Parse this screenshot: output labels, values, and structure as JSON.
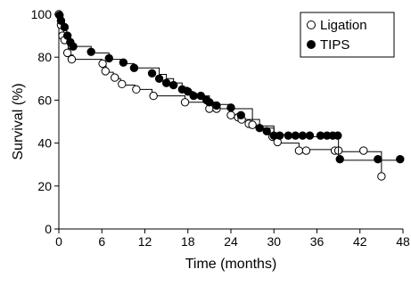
{
  "chart_data": {
    "type": "line",
    "subtype": "kaplan-meier-step",
    "title": "",
    "xlabel": "Time (months)",
    "ylabel": "Survival (%)",
    "xlim": [
      0,
      48
    ],
    "ylim": [
      0,
      100
    ],
    "xticks": [
      0,
      6,
      12,
      18,
      24,
      30,
      36,
      42,
      48
    ],
    "yticks": [
      0,
      20,
      40,
      60,
      80,
      100
    ],
    "grid": false,
    "legend_position": "top-right",
    "series": [
      {
        "name": "Ligation",
        "marker": "open-circle",
        "color": "#000000",
        "steps": [
          [
            0,
            100
          ],
          [
            0.2,
            96
          ],
          [
            0.4,
            93
          ],
          [
            0.7,
            90
          ],
          [
            1,
            87
          ],
          [
            1.3,
            84
          ],
          [
            1.6,
            81
          ],
          [
            2,
            79
          ],
          [
            6,
            76
          ],
          [
            6.6,
            73
          ],
          [
            7.6,
            70
          ],
          [
            8.6,
            67
          ],
          [
            10.6,
            65
          ],
          [
            13,
            62
          ],
          [
            17.6,
            59
          ],
          [
            21,
            56
          ],
          [
            24,
            53
          ],
          [
            25,
            51
          ],
          [
            27,
            48
          ],
          [
            30,
            43
          ],
          [
            30.5,
            40
          ],
          [
            33.5,
            37
          ],
          [
            38,
            36
          ],
          [
            45,
            24
          ]
        ],
        "censored": [
          [
            0,
            100
          ],
          [
            0.3,
            95
          ],
          [
            0.5,
            90
          ],
          [
            0.8,
            88
          ],
          [
            1.2,
            82
          ],
          [
            1.8,
            79
          ],
          [
            6.1,
            77
          ],
          [
            6.5,
            73.5
          ],
          [
            7.8,
            70.5
          ],
          [
            8.8,
            67.5
          ],
          [
            10.8,
            65
          ],
          [
            13.2,
            62
          ],
          [
            17.6,
            59
          ],
          [
            21,
            56
          ],
          [
            22,
            56
          ],
          [
            24,
            53
          ],
          [
            25,
            52
          ],
          [
            25.5,
            51
          ],
          [
            26.5,
            49
          ],
          [
            27,
            48.5
          ],
          [
            29.8,
            43
          ],
          [
            30.5,
            40.5
          ],
          [
            33.5,
            36.5
          ],
          [
            34.5,
            36.5
          ],
          [
            38.5,
            36.5
          ],
          [
            39,
            36.5
          ],
          [
            42.5,
            36.5
          ],
          [
            45,
            24.5
          ]
        ]
      },
      {
        "name": "TIPS",
        "marker": "filled-circle",
        "color": "#000000",
        "steps": [
          [
            0,
            100
          ],
          [
            0.4,
            97
          ],
          [
            0.8,
            94
          ],
          [
            1.1,
            91
          ],
          [
            1.4,
            88
          ],
          [
            1.7,
            85
          ],
          [
            4.5,
            82
          ],
          [
            7,
            79
          ],
          [
            9,
            77
          ],
          [
            10.5,
            75
          ],
          [
            14,
            72
          ],
          [
            15,
            70
          ],
          [
            16,
            68
          ],
          [
            17.2,
            66
          ],
          [
            18,
            64
          ],
          [
            18.8,
            62
          ],
          [
            21,
            59
          ],
          [
            22,
            58
          ],
          [
            24,
            56
          ],
          [
            27,
            51
          ],
          [
            28,
            47
          ],
          [
            30,
            44
          ],
          [
            32,
            43
          ],
          [
            39,
            32
          ],
          [
            44.5,
            32
          ]
        ],
        "censored": [
          [
            0.1,
            99.5
          ],
          [
            0.3,
            97
          ],
          [
            0.8,
            94
          ],
          [
            1.2,
            90
          ],
          [
            1.6,
            87
          ],
          [
            2,
            85
          ],
          [
            4.5,
            82.5
          ],
          [
            7,
            79.5
          ],
          [
            9,
            77.5
          ],
          [
            10.5,
            75
          ],
          [
            13,
            72.5
          ],
          [
            14,
            70
          ],
          [
            15,
            68
          ],
          [
            16,
            67
          ],
          [
            17.2,
            65
          ],
          [
            18,
            64
          ],
          [
            18.8,
            62
          ],
          [
            19.8,
            62
          ],
          [
            20.6,
            60
          ],
          [
            21,
            59
          ],
          [
            22,
            57.5
          ],
          [
            24,
            56.5
          ],
          [
            25.4,
            53
          ],
          [
            28,
            47
          ],
          [
            29,
            45.5
          ],
          [
            30,
            43.5
          ],
          [
            30.8,
            43.5
          ],
          [
            32,
            43.5
          ],
          [
            33,
            43.5
          ],
          [
            34,
            43.5
          ],
          [
            35,
            43.5
          ],
          [
            36.5,
            43.5
          ],
          [
            37.4,
            43.5
          ],
          [
            38.2,
            43.5
          ],
          [
            38.9,
            43.5
          ],
          [
            39.2,
            32.5
          ],
          [
            44.5,
            32.5
          ],
          [
            47.6,
            32.5
          ]
        ]
      }
    ]
  }
}
